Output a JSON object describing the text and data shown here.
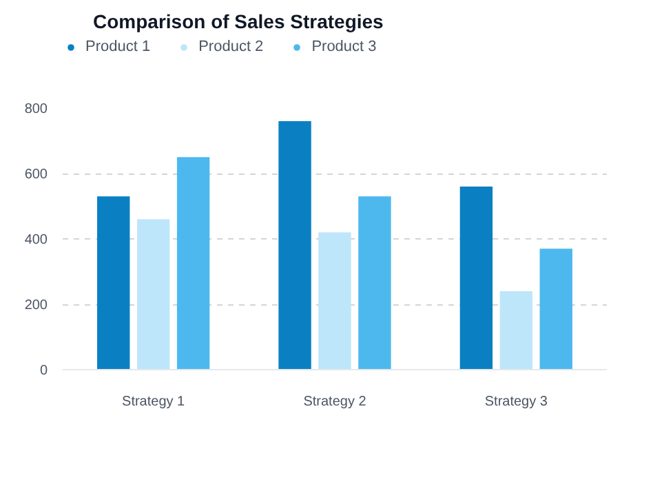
{
  "chart_data": {
    "type": "bar",
    "title": "Comparison of Sales Strategies",
    "categories": [
      "Strategy 1",
      "Strategy 2",
      "Strategy 3"
    ],
    "series": [
      {
        "name": "Product 1",
        "color": "#0a80c2",
        "values": [
          530,
          760,
          560
        ]
      },
      {
        "name": "Product 2",
        "color": "#bde6fa",
        "values": [
          460,
          420,
          240
        ]
      },
      {
        "name": "Product 3",
        "color": "#4db8ee",
        "values": [
          650,
          530,
          370
        ]
      }
    ],
    "ylim": [
      0,
      800
    ],
    "yticks": [
      0,
      200,
      400,
      600,
      800
    ],
    "grid": "y",
    "legend": "top left"
  }
}
